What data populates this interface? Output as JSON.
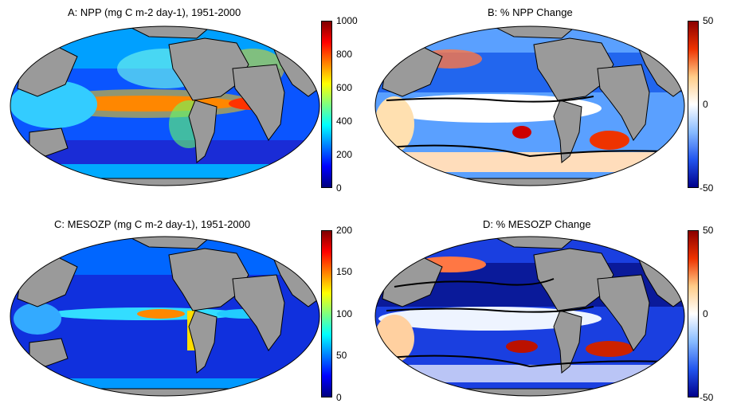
{
  "panels": [
    {
      "id": "A",
      "title": "A: NPP (mg C m-2 day-1), 1951-2000",
      "colormap": "jet",
      "colorbar_ticks": [
        "1000",
        "800",
        "600",
        "400",
        "200",
        "0"
      ]
    },
    {
      "id": "B",
      "title": "B: % NPP Change",
      "colormap": "diverging-blue-white-red",
      "colorbar_ticks": [
        "50",
        "0",
        "-50"
      ]
    },
    {
      "id": "C",
      "title": "C: MESOZP (mg C m-2 day-1), 1951-2000",
      "colormap": "jet",
      "colorbar_ticks": [
        "200",
        "150",
        "100",
        "50",
        "0"
      ]
    },
    {
      "id": "D",
      "title": "D: % MESOZP Change",
      "colormap": "diverging-blue-white-red",
      "colorbar_ticks": [
        "50",
        "0",
        "-50"
      ]
    }
  ],
  "colors": {
    "land": "#9a9a9a",
    "coastline": "#000000",
    "jet": [
      "#00007f",
      "#0000ff",
      "#007fff",
      "#00ffff",
      "#7fff7f",
      "#ffff00",
      "#ff7f00",
      "#ff0000",
      "#7f0000"
    ],
    "diverging": [
      "#00008b",
      "#2255ee",
      "#88bbff",
      "#ffffff",
      "#ffcc88",
      "#ee3300",
      "#8b0000"
    ]
  }
}
